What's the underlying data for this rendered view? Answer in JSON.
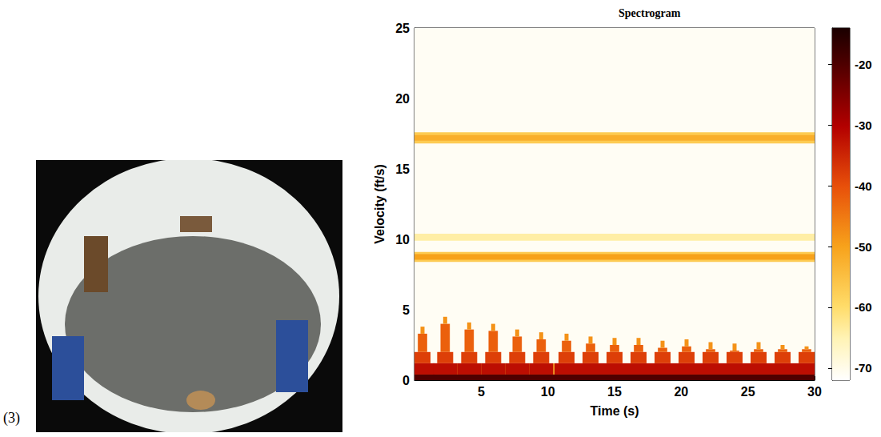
{
  "panel_label": "(3)",
  "chart_data": {
    "type": "heatmap",
    "title": "Spectrogram",
    "x_label": "Time (s)",
    "y_label": "Velocity (ft/s)",
    "xlim": [
      0,
      30
    ],
    "xticks": [
      5,
      10,
      15,
      20,
      25,
      30
    ],
    "ylim": [
      0,
      25
    ],
    "yticks": [
      0,
      5,
      10,
      15,
      20,
      25
    ],
    "grid": false,
    "cells": [
      [
        0,
        30,
        0,
        25,
        -71
      ],
      [
        0,
        30,
        16.8,
        17.6,
        -57
      ],
      [
        0,
        30,
        17.0,
        17.4,
        -52
      ],
      [
        0,
        30,
        9.9,
        10.4,
        -64
      ],
      [
        0,
        30,
        8.4,
        9.1,
        -57
      ],
      [
        0,
        30,
        8.55,
        8.95,
        -50
      ],
      [
        0,
        30,
        0.4,
        1.2,
        -52
      ],
      [
        0,
        1.5,
        0.4,
        1.2,
        -32
      ],
      [
        0,
        1.2,
        1.2,
        2.0,
        -38
      ],
      [
        0.25,
        0.95,
        2.0,
        3.3,
        -42
      ],
      [
        0.45,
        0.75,
        3.3,
        3.8,
        -48
      ],
      [
        1.4,
        3.2,
        0.4,
        1.2,
        -32
      ],
      [
        1.7,
        2.9,
        1.2,
        2.0,
        -38
      ],
      [
        1.95,
        2.65,
        2.0,
        4.0,
        -42
      ],
      [
        2.15,
        2.45,
        4.0,
        4.5,
        -48
      ],
      [
        3.2,
        5.0,
        0.4,
        1.2,
        -32
      ],
      [
        3.5,
        4.7,
        1.2,
        2.0,
        -38
      ],
      [
        3.75,
        4.45,
        2.0,
        3.6,
        -42
      ],
      [
        3.95,
        4.25,
        3.6,
        4.1,
        -48
      ],
      [
        5.0,
        6.8,
        0.4,
        1.2,
        -32
      ],
      [
        5.3,
        6.5,
        1.2,
        2.0,
        -38
      ],
      [
        5.55,
        6.25,
        2.0,
        3.5,
        -42
      ],
      [
        5.75,
        6.05,
        3.5,
        4.0,
        -48
      ],
      [
        6.8,
        8.6,
        0.4,
        1.2,
        -32
      ],
      [
        7.1,
        8.3,
        1.2,
        2.0,
        -38
      ],
      [
        7.35,
        8.05,
        2.0,
        3.1,
        -42
      ],
      [
        7.55,
        7.85,
        3.1,
        3.6,
        -48
      ],
      [
        8.6,
        10.4,
        0.4,
        1.2,
        -32
      ],
      [
        8.9,
        10.1,
        1.2,
        2.0,
        -38
      ],
      [
        9.15,
        9.85,
        2.0,
        2.9,
        -42
      ],
      [
        9.35,
        9.65,
        2.9,
        3.4,
        -48
      ],
      [
        10.5,
        12.3,
        0.4,
        1.2,
        -32
      ],
      [
        10.8,
        12.0,
        1.2,
        2.0,
        -38
      ],
      [
        11.05,
        11.75,
        2.0,
        2.8,
        -42
      ],
      [
        11.25,
        11.55,
        2.8,
        3.3,
        -48
      ],
      [
        12.3,
        14.1,
        0.4,
        1.2,
        -32
      ],
      [
        12.6,
        13.8,
        1.2,
        2.0,
        -38
      ],
      [
        12.85,
        13.55,
        2.0,
        2.6,
        -42
      ],
      [
        13.05,
        13.35,
        2.6,
        3.1,
        -48
      ],
      [
        14.1,
        15.9,
        0.4,
        1.2,
        -32
      ],
      [
        14.4,
        15.6,
        1.2,
        2.0,
        -38
      ],
      [
        14.65,
        15.35,
        2.0,
        2.5,
        -42
      ],
      [
        14.85,
        15.15,
        2.5,
        3.0,
        -48
      ],
      [
        15.9,
        17.7,
        0.4,
        1.2,
        -32
      ],
      [
        16.2,
        17.4,
        1.2,
        2.0,
        -38
      ],
      [
        16.45,
        17.15,
        2.0,
        2.5,
        -42
      ],
      [
        16.65,
        16.95,
        2.5,
        3.0,
        -48
      ],
      [
        17.7,
        19.5,
        0.4,
        1.2,
        -32
      ],
      [
        18.0,
        19.2,
        1.2,
        2.0,
        -38
      ],
      [
        18.25,
        18.95,
        2.0,
        2.3,
        -42
      ],
      [
        18.45,
        18.75,
        2.3,
        2.8,
        -48
      ],
      [
        19.5,
        21.3,
        0.4,
        1.2,
        -32
      ],
      [
        19.8,
        21.0,
        1.2,
        2.0,
        -38
      ],
      [
        20.05,
        20.75,
        2.0,
        2.4,
        -42
      ],
      [
        20.25,
        20.55,
        2.4,
        2.9,
        -48
      ],
      [
        21.3,
        23.1,
        0.4,
        1.2,
        -32
      ],
      [
        21.6,
        22.8,
        1.2,
        2.0,
        -38
      ],
      [
        21.85,
        22.55,
        2.0,
        2.2,
        -42
      ],
      [
        22.05,
        22.35,
        2.2,
        2.7,
        -48
      ],
      [
        23.1,
        24.9,
        0.4,
        1.2,
        -32
      ],
      [
        23.4,
        24.6,
        1.2,
        2.0,
        -38
      ],
      [
        23.65,
        24.35,
        2.0,
        2.1,
        -42
      ],
      [
        23.85,
        24.15,
        2.1,
        2.6,
        -48
      ],
      [
        24.9,
        26.7,
        0.4,
        1.2,
        -32
      ],
      [
        25.2,
        26.4,
        1.2,
        2.0,
        -38
      ],
      [
        25.45,
        26.15,
        2.0,
        2.2,
        -42
      ],
      [
        25.65,
        25.95,
        2.2,
        2.7,
        -48
      ],
      [
        26.7,
        28.5,
        0.4,
        1.2,
        -32
      ],
      [
        27.0,
        28.2,
        1.2,
        2.0,
        -38
      ],
      [
        27.25,
        27.95,
        2.0,
        2.2,
        -42
      ],
      [
        27.45,
        27.75,
        2.2,
        2.5,
        -48
      ],
      [
        28.5,
        30,
        0.4,
        1.2,
        -32
      ],
      [
        28.8,
        30,
        1.2,
        2.0,
        -38
      ],
      [
        29.05,
        29.75,
        2.0,
        2.2,
        -42
      ],
      [
        29.25,
        29.55,
        2.2,
        2.4,
        -48
      ],
      [
        0,
        30,
        0,
        0.4,
        -20
      ]
    ],
    "colorbar": {
      "range": [
        -72,
        -14
      ],
      "ticks": [
        -20,
        -30,
        -40,
        -50,
        -60,
        -70
      ]
    }
  }
}
